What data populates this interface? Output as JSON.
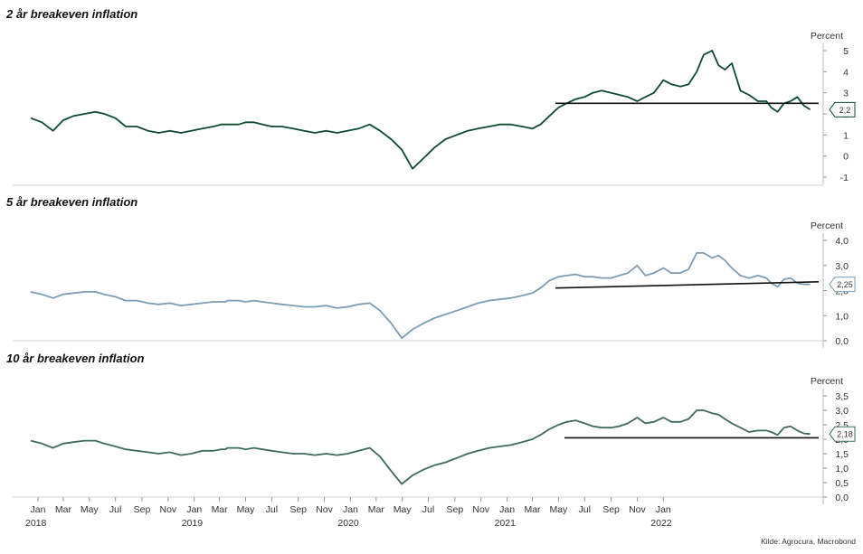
{
  "source": "Kilde: Agrocura, Macrobond",
  "x_axis": {
    "months": [
      "Jan",
      "Mar",
      "May",
      "Jul",
      "Sep",
      "Nov",
      "Jan",
      "Mar",
      "May",
      "Jul",
      "Sep",
      "Nov",
      "Jan",
      "Mar",
      "May",
      "Jul",
      "Sep",
      "Nov",
      "Jan",
      "Mar",
      "May",
      "Jul",
      "Sep",
      "Nov",
      "Jan"
    ],
    "years": [
      "2018",
      "2019",
      "2020",
      "2021",
      "2022"
    ]
  },
  "chart_data": [
    {
      "type": "line",
      "title": "2 år breakeven inflation",
      "ylabel": "Percent",
      "ylim": [
        -1,
        5.5
      ],
      "yticks": [
        "-1",
        "0",
        "1",
        "2",
        "3",
        "4",
        "5"
      ],
      "color": "#0e4a2f",
      "last_value_label": "2,2",
      "reference_line": {
        "x_start": "2021-04-24",
        "x_end": "2022-12-31",
        "y_start": 2.5,
        "y_end": 2.5
      },
      "series": [
        {
          "x": [
            "2017-12-15",
            "2018-01-10",
            "2018-02-05",
            "2018-03-01",
            "2018-03-25",
            "2018-04-20",
            "2018-05-15",
            "2018-06-05",
            "2018-07-01",
            "2018-07-25",
            "2018-08-20",
            "2018-09-15",
            "2018-10-10",
            "2018-11-05",
            "2018-12-01",
            "2018-12-25",
            "2019-01-20",
            "2019-02-15",
            "2019-03-05",
            "2019-03-15",
            "2019-03-20",
            "2019-04-01",
            "2019-04-15",
            "2019-05-01",
            "2019-05-20",
            "2019-06-10",
            "2019-07-01",
            "2019-07-25",
            "2019-08-20",
            "2019-09-15",
            "2019-10-10",
            "2019-11-05",
            "2019-12-01",
            "2019-12-25",
            "2020-01-20",
            "2020-02-15",
            "2020-03-10",
            "2020-04-05",
            "2020-04-30",
            "2020-05-25",
            "2020-06-20",
            "2020-07-15",
            "2020-08-10",
            "2020-09-05",
            "2020-10-01",
            "2020-10-25",
            "2020-11-20",
            "2020-12-15",
            "2021-01-10",
            "2021-02-05",
            "2021-03-01",
            "2021-03-20",
            "2021-04-10",
            "2021-05-01",
            "2021-05-20",
            "2021-06-10",
            "2021-07-01",
            "2021-07-20",
            "2021-08-10",
            "2021-09-01",
            "2021-09-20",
            "2021-10-10",
            "2021-11-01",
            "2021-11-20",
            "2021-12-10",
            "2022-01-01",
            "2022-01-20",
            "2022-02-10",
            "2022-03-01",
            "2022-03-20",
            "2022-04-05",
            "2022-04-25",
            "2022-05-10",
            "2022-05-25",
            "2022-06-10",
            "2022-06-30",
            "2022-07-20",
            "2022-08-10",
            "2022-08-30",
            "2022-09-10",
            "2022-09-25",
            "2022-10-10",
            "2022-10-25",
            "2022-11-10",
            "2022-11-25",
            "2022-12-10"
          ],
          "y": [
            1.8,
            1.6,
            1.2,
            1.7,
            1.9,
            2.0,
            2.1,
            2.0,
            1.8,
            1.4,
            1.4,
            1.2,
            1.1,
            1.2,
            1.1,
            1.2,
            1.3,
            1.4,
            1.5,
            1.5,
            1.5,
            1.5,
            1.5,
            1.6,
            1.6,
            1.5,
            1.4,
            1.4,
            1.3,
            1.2,
            1.1,
            1.2,
            1.1,
            1.2,
            1.3,
            1.5,
            1.2,
            0.8,
            0.3,
            -0.6,
            -0.1,
            0.4,
            0.8,
            1.0,
            1.2,
            1.3,
            1.4,
            1.5,
            1.5,
            1.4,
            1.3,
            1.5,
            1.9,
            2.3,
            2.5,
            2.7,
            2.8,
            3.0,
            3.1,
            3.0,
            2.9,
            2.8,
            2.6,
            2.8,
            3.0,
            3.6,
            3.4,
            3.3,
            3.4,
            4.0,
            4.8,
            5.0,
            4.3,
            4.1,
            4.4,
            3.1,
            2.9,
            2.6,
            2.6,
            2.3,
            2.1,
            2.5,
            2.6,
            2.8,
            2.4,
            2.2
          ]
        }
      ]
    },
    {
      "type": "line",
      "title": "5 år breakeven inflation",
      "ylabel": "Percent",
      "ylim": [
        0,
        4.0
      ],
      "yticks": [
        "0,0",
        "1,0",
        "2,0",
        "3,0",
        "4,0"
      ],
      "color": "#7b9db5",
      "last_value_label": "2,25",
      "reference_line": {
        "x_start": "2021-04-24",
        "x_end": "2022-12-31",
        "y_start": 2.1,
        "y_end": 2.35
      },
      "series": [
        {
          "x": [
            "2017-12-15",
            "2018-01-10",
            "2018-02-05",
            "2018-03-01",
            "2018-03-25",
            "2018-04-20",
            "2018-05-15",
            "2018-06-05",
            "2018-07-01",
            "2018-07-25",
            "2018-08-20",
            "2018-09-15",
            "2018-10-10",
            "2018-11-05",
            "2018-12-01",
            "2018-12-25",
            "2019-01-20",
            "2019-02-15",
            "2019-03-05",
            "2019-03-15",
            "2019-03-20",
            "2019-04-01",
            "2019-04-15",
            "2019-05-01",
            "2019-05-20",
            "2019-06-10",
            "2019-07-01",
            "2019-07-25",
            "2019-08-20",
            "2019-09-15",
            "2019-10-10",
            "2019-11-05",
            "2019-12-01",
            "2019-12-25",
            "2020-01-20",
            "2020-02-15",
            "2020-03-10",
            "2020-04-05",
            "2020-04-30",
            "2020-05-25",
            "2020-06-20",
            "2020-07-15",
            "2020-08-10",
            "2020-09-05",
            "2020-10-01",
            "2020-10-25",
            "2020-11-20",
            "2020-12-15",
            "2021-01-10",
            "2021-02-05",
            "2021-03-01",
            "2021-03-20",
            "2021-04-10",
            "2021-05-01",
            "2021-05-20",
            "2021-06-10",
            "2021-07-01",
            "2021-07-20",
            "2021-08-10",
            "2021-09-01",
            "2021-09-20",
            "2021-10-10",
            "2021-11-01",
            "2021-11-20",
            "2021-12-10",
            "2022-01-01",
            "2022-01-20",
            "2022-02-10",
            "2022-03-01",
            "2022-03-20",
            "2022-04-05",
            "2022-04-25",
            "2022-05-10",
            "2022-05-25",
            "2022-06-10",
            "2022-06-30",
            "2022-07-20",
            "2022-08-10",
            "2022-08-30",
            "2022-09-10",
            "2022-09-25",
            "2022-10-10",
            "2022-10-25",
            "2022-11-10",
            "2022-11-25",
            "2022-12-10"
          ],
          "y": [
            1.95,
            1.85,
            1.7,
            1.85,
            1.9,
            1.95,
            1.95,
            1.85,
            1.75,
            1.6,
            1.6,
            1.5,
            1.45,
            1.5,
            1.4,
            1.45,
            1.5,
            1.55,
            1.55,
            1.55,
            1.6,
            1.6,
            1.6,
            1.55,
            1.6,
            1.55,
            1.5,
            1.45,
            1.4,
            1.35,
            1.35,
            1.4,
            1.3,
            1.35,
            1.45,
            1.5,
            1.2,
            0.7,
            0.1,
            0.45,
            0.7,
            0.9,
            1.05,
            1.2,
            1.35,
            1.5,
            1.6,
            1.65,
            1.7,
            1.8,
            1.9,
            2.1,
            2.4,
            2.55,
            2.6,
            2.65,
            2.55,
            2.55,
            2.5,
            2.5,
            2.6,
            2.7,
            3.0,
            2.6,
            2.7,
            2.9,
            2.7,
            2.7,
            2.85,
            3.5,
            3.5,
            3.3,
            3.4,
            3.2,
            2.9,
            2.6,
            2.5,
            2.6,
            2.5,
            2.3,
            2.15,
            2.45,
            2.5,
            2.3,
            2.25,
            2.25
          ]
        }
      ]
    },
    {
      "type": "line",
      "title": "10 år breakeven inflation",
      "ylabel": "Percent",
      "ylim": [
        0,
        3.5
      ],
      "yticks": [
        "0,0",
        "0,5",
        "1,0",
        "1,5",
        "2,0",
        "2,5",
        "3,0",
        "3,5"
      ],
      "color": "#3d6b57",
      "last_value_label": "2,18",
      "reference_line": {
        "x_start": "2021-05-15",
        "x_end": "2022-12-31",
        "y_start": 2.05,
        "y_end": 2.05
      },
      "series": [
        {
          "x": [
            "2017-12-15",
            "2018-01-10",
            "2018-02-05",
            "2018-03-01",
            "2018-03-25",
            "2018-04-20",
            "2018-05-15",
            "2018-06-05",
            "2018-07-01",
            "2018-07-25",
            "2018-08-20",
            "2018-09-15",
            "2018-10-10",
            "2018-11-05",
            "2018-12-01",
            "2018-12-25",
            "2019-01-20",
            "2019-02-15",
            "2019-03-05",
            "2019-03-15",
            "2019-03-20",
            "2019-04-01",
            "2019-04-15",
            "2019-05-01",
            "2019-05-20",
            "2019-06-10",
            "2019-07-01",
            "2019-07-25",
            "2019-08-20",
            "2019-09-15",
            "2019-10-10",
            "2019-11-05",
            "2019-12-01",
            "2019-12-25",
            "2020-01-20",
            "2020-02-15",
            "2020-03-10",
            "2020-04-05",
            "2020-04-30",
            "2020-05-25",
            "2020-06-20",
            "2020-07-15",
            "2020-08-10",
            "2020-09-05",
            "2020-10-01",
            "2020-10-25",
            "2020-11-20",
            "2020-12-15",
            "2021-01-10",
            "2021-02-05",
            "2021-03-01",
            "2021-03-20",
            "2021-04-10",
            "2021-05-01",
            "2021-05-20",
            "2021-06-10",
            "2021-07-01",
            "2021-07-20",
            "2021-08-10",
            "2021-09-01",
            "2021-09-20",
            "2021-10-10",
            "2021-11-01",
            "2021-11-20",
            "2021-12-10",
            "2022-01-01",
            "2022-01-20",
            "2022-02-10",
            "2022-03-01",
            "2022-03-20",
            "2022-04-05",
            "2022-04-25",
            "2022-05-10",
            "2022-05-25",
            "2022-06-10",
            "2022-06-30",
            "2022-07-20",
            "2022-08-10",
            "2022-08-30",
            "2022-09-10",
            "2022-09-25",
            "2022-10-10",
            "2022-10-25",
            "2022-11-10",
            "2022-11-25",
            "2022-12-10"
          ],
          "y": [
            1.95,
            1.85,
            1.7,
            1.85,
            1.9,
            1.95,
            1.95,
            1.85,
            1.75,
            1.65,
            1.6,
            1.55,
            1.5,
            1.55,
            1.45,
            1.5,
            1.6,
            1.6,
            1.65,
            1.65,
            1.7,
            1.7,
            1.7,
            1.65,
            1.7,
            1.65,
            1.6,
            1.55,
            1.5,
            1.5,
            1.45,
            1.5,
            1.45,
            1.5,
            1.6,
            1.7,
            1.4,
            0.9,
            0.45,
            0.75,
            0.95,
            1.1,
            1.2,
            1.35,
            1.5,
            1.6,
            1.7,
            1.75,
            1.8,
            1.9,
            2.0,
            2.15,
            2.35,
            2.5,
            2.6,
            2.65,
            2.55,
            2.45,
            2.4,
            2.4,
            2.45,
            2.55,
            2.75,
            2.55,
            2.6,
            2.75,
            2.6,
            2.6,
            2.7,
            3.0,
            3.0,
            2.9,
            2.85,
            2.7,
            2.55,
            2.4,
            2.25,
            2.3,
            2.3,
            2.25,
            2.15,
            2.4,
            2.45,
            2.3,
            2.2,
            2.18
          ]
        }
      ]
    }
  ]
}
